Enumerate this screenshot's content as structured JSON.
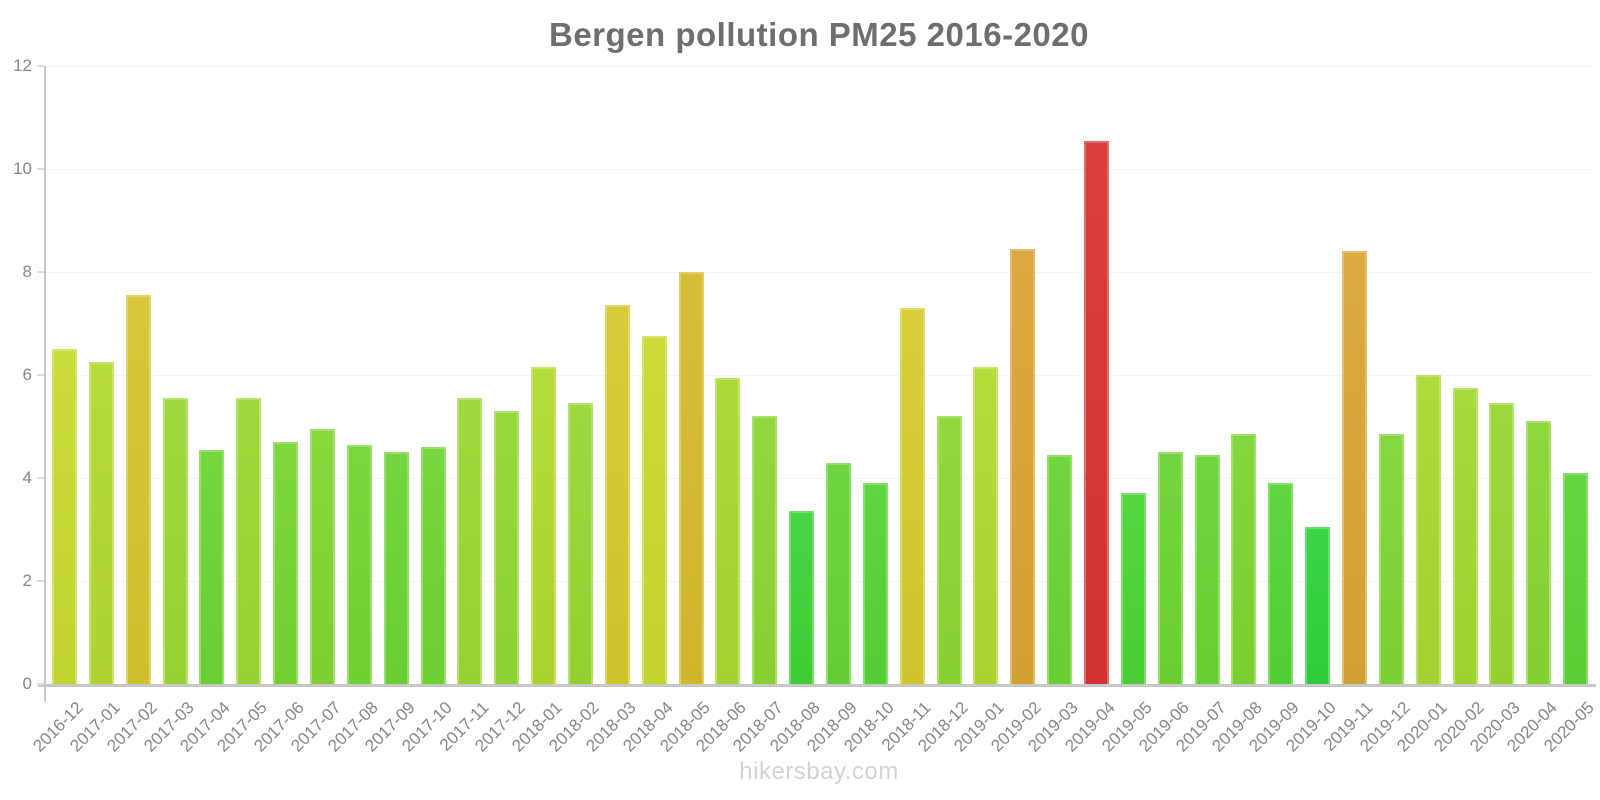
{
  "chart_data": {
    "type": "bar",
    "title": "Bergen pollution PM25 2016-2020",
    "xlabel": "",
    "ylabel": "",
    "ylim": [
      0,
      12
    ],
    "yticks": [
      0,
      2,
      4,
      6,
      8,
      10,
      12
    ],
    "grid": true,
    "legend": "none",
    "x_tick_rotation_deg": -45,
    "categories": [
      "2016-12",
      "2017-01",
      "2017-02",
      "2017-03",
      "2017-04",
      "2017-05",
      "2017-06",
      "2017-07",
      "2017-08",
      "2017-09",
      "2017-10",
      "2017-11",
      "2017-12",
      "2018-01",
      "2018-02",
      "2018-03",
      "2018-04",
      "2018-05",
      "2018-06",
      "2018-07",
      "2018-08",
      "2018-09",
      "2018-10",
      "2018-11",
      "2018-12",
      "2019-01",
      "2019-02",
      "2019-03",
      "2019-04",
      "2019-05",
      "2019-06",
      "2019-07",
      "2019-08",
      "2019-09",
      "2019-10",
      "2019-11",
      "2019-12",
      "2020-01",
      "2020-02",
      "2020-03",
      "2020-04",
      "2020-05"
    ],
    "values": [
      6.5,
      6.25,
      7.55,
      5.55,
      4.55,
      5.55,
      4.7,
      4.95,
      4.65,
      4.5,
      4.6,
      5.55,
      5.3,
      6.15,
      5.45,
      7.35,
      6.75,
      8.0,
      5.95,
      5.2,
      3.35,
      4.3,
      3.9,
      7.3,
      5.2,
      6.15,
      8.45,
      4.45,
      10.55,
      3.7,
      4.5,
      4.45,
      4.85,
      3.9,
      3.05,
      8.4,
      4.85,
      6.0,
      5.75,
      5.45,
      5.1,
      4.1
    ],
    "bar_colors": [
      "#c6da31",
      "#b2d932",
      "#d6c52e",
      "#9bd733",
      "#6ed434",
      "#9bd733",
      "#76d533",
      "#80d633",
      "#74d533",
      "#6cd434",
      "#71d434",
      "#9bd733",
      "#90d733",
      "#b1d932",
      "#97d733",
      "#d5c92e",
      "#c8da30",
      "#d5bb2d",
      "#a8d832",
      "#8bd633",
      "#3fd338",
      "#65d435",
      "#55d436",
      "#d5cb2f",
      "#8bd633",
      "#b1d932",
      "#d9a535",
      "#6ad434",
      "#d83434",
      "#4bd437",
      "#6cd434",
      "#6ad434",
      "#7dd533",
      "#55d436",
      "#2fd33b",
      "#d8a636",
      "#7fd634",
      "#a9d832",
      "#a2d833",
      "#97d733",
      "#87d633",
      "#5dd435"
    ]
  },
  "footer": {
    "watermark": "hikersbay.com"
  },
  "colors": {
    "title": "#6e6e6e",
    "axis": "#c8c8c8",
    "gridline": "#f4f4f4",
    "tick_label": "#878787",
    "watermark": "#d3d3d3"
  }
}
